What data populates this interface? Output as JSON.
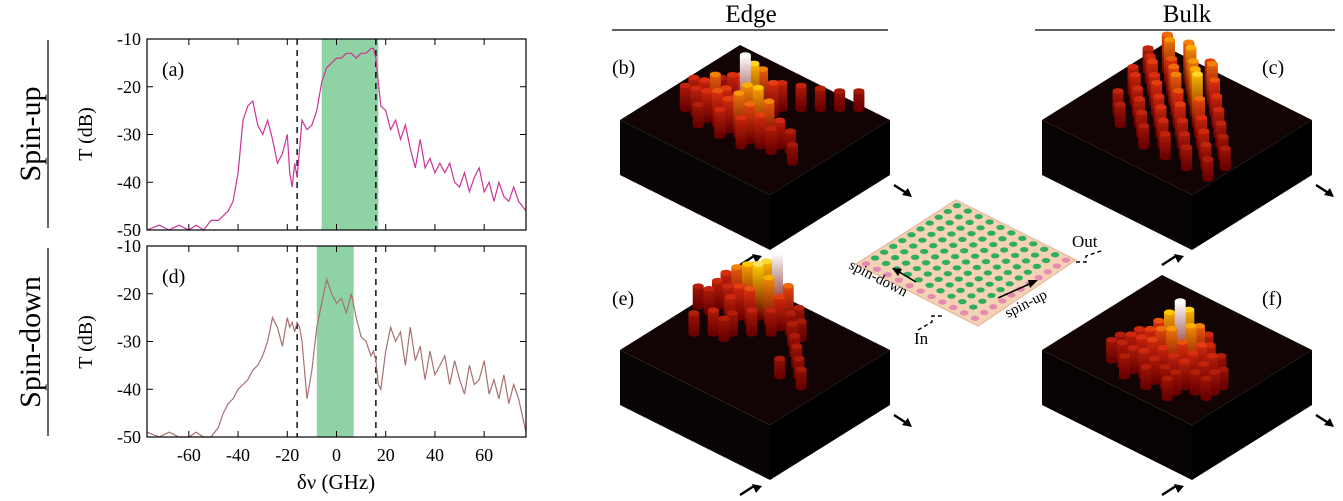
{
  "chart_data": [
    {
      "type": "line",
      "panel": "(a)",
      "row_label": "Spin-up",
      "xlabel": "δν (GHz)",
      "ylabel": "T (dB)",
      "xlim": [
        -77,
        77
      ],
      "ylim": [
        -50,
        -10
      ],
      "yticks": [
        -10,
        -20,
        -30,
        -40,
        -50
      ],
      "xticks": [
        -60,
        -40,
        -20,
        0,
        20,
        40,
        60
      ],
      "color": "#cc3399",
      "band": [
        -6,
        17
      ],
      "band_color": "#8fd3a5",
      "dashed_lines": [
        -16,
        16
      ],
      "x": [
        -77,
        -72,
        -68,
        -64,
        -60,
        -57,
        -54,
        -51,
        -48,
        -46,
        -44,
        -42,
        -40,
        -38,
        -36,
        -34,
        -32,
        -30,
        -28,
        -26,
        -24,
        -22,
        -20,
        -19,
        -18,
        -17,
        -16,
        -15,
        -14,
        -12,
        -10,
        -8,
        -6,
        -4,
        -2,
        0,
        2,
        4,
        6,
        8,
        10,
        12,
        14,
        15,
        16,
        17,
        18,
        20,
        22,
        24,
        26,
        28,
        30,
        32,
        34,
        36,
        38,
        40,
        42,
        44,
        46,
        48,
        50,
        52,
        54,
        56,
        58,
        60,
        62,
        64,
        66,
        68,
        70,
        72,
        74,
        77
      ],
      "y": [
        -50,
        -49,
        -51,
        -49,
        -50,
        -49,
        -50,
        -48,
        -48,
        -47,
        -46,
        -44,
        -38,
        -27,
        -24,
        -23,
        -28,
        -30,
        -27,
        -31,
        -36,
        -34,
        -30,
        -38,
        -41,
        -36,
        -39,
        -33,
        -27,
        -29,
        -28,
        -25,
        -19,
        -16,
        -15,
        -14,
        -14,
        -13,
        -13,
        -14,
        -13,
        -13,
        -12,
        -12,
        -14,
        -19,
        -24,
        -25,
        -29,
        -27,
        -31,
        -28,
        -33,
        -37,
        -31,
        -37,
        -35,
        -38,
        -36,
        -38,
        -36,
        -40,
        -41,
        -38,
        -42,
        -39,
        -37,
        -42,
        -40,
        -44,
        -40,
        -43,
        -44,
        -41,
        -44,
        -46
      ]
    },
    {
      "type": "line",
      "panel": "(d)",
      "row_label": "Spin-down",
      "xlabel": "δν (GHz)",
      "ylabel": "T (dB)",
      "xlim": [
        -77,
        77
      ],
      "ylim": [
        -50,
        -10
      ],
      "yticks": [
        -10,
        -20,
        -30,
        -40,
        -50
      ],
      "xticks": [
        -60,
        -40,
        -20,
        0,
        20,
        40,
        60
      ],
      "color": "#a87070",
      "band": [
        -8,
        7
      ],
      "band_color": "#8fd3a5",
      "dashed_lines": [
        -16,
        16
      ],
      "x": [
        -77,
        -72,
        -68,
        -64,
        -60,
        -57,
        -54,
        -51,
        -48,
        -46,
        -44,
        -42,
        -40,
        -38,
        -36,
        -34,
        -32,
        -30,
        -28,
        -26,
        -24,
        -22,
        -20,
        -19,
        -18,
        -17,
        -16,
        -15,
        -14,
        -12,
        -10,
        -8,
        -6,
        -4,
        -2,
        0,
        2,
        4,
        6,
        8,
        10,
        12,
        14,
        15,
        16,
        17,
        18,
        20,
        22,
        24,
        26,
        28,
        30,
        32,
        34,
        36,
        38,
        40,
        42,
        44,
        46,
        48,
        50,
        52,
        54,
        56,
        58,
        60,
        62,
        64,
        66,
        68,
        70,
        72,
        74,
        77
      ],
      "y": [
        -49,
        -50,
        -49,
        -50,
        -50,
        -49,
        -50,
        -50,
        -48,
        -45,
        -43,
        -42,
        -40,
        -39,
        -38,
        -36,
        -35,
        -33,
        -30,
        -25,
        -27,
        -31,
        -25,
        -27,
        -26,
        -28,
        -26,
        -27,
        -30,
        -42,
        -36,
        -27,
        -22,
        -17,
        -20,
        -22,
        -21,
        -24,
        -20,
        -25,
        -29,
        -30,
        -33,
        -32,
        -34,
        -39,
        -40,
        -32,
        -27,
        -30,
        -28,
        -35,
        -27,
        -34,
        -31,
        -38,
        -32,
        -37,
        -35,
        -33,
        -39,
        -34,
        -38,
        -41,
        -35,
        -39,
        -38,
        -34,
        -41,
        -38,
        -42,
        -37,
        -43,
        -39,
        -42,
        -49
      ]
    }
  ],
  "headers": {
    "edge": "Edge",
    "bulk": "Bulk"
  },
  "panel_labels": {
    "b": "(b)",
    "c": "(c)",
    "e": "(e)",
    "f": "(f)"
  },
  "inset": {
    "out_label": "Out",
    "in_label": "In",
    "spin_down_label": "spin-down",
    "spin_up_label": "spin-up"
  },
  "colors": {
    "box_dark": "#000000",
    "pillar_low": "#6a0000",
    "pillar_mid": "#e03010",
    "pillar_high": "#ffd000",
    "pillar_top": "#ffffff",
    "hole_green": "#2fae5f",
    "hole_pink": "#e58ab0",
    "plate": "#f3d2b5"
  },
  "pillars": {
    "b": [
      [
        4,
        5,
        0.25
      ],
      [
        4,
        6,
        0.35
      ],
      [
        5,
        5,
        0.2
      ],
      [
        5,
        6,
        0.45
      ],
      [
        6,
        5,
        0.55
      ],
      [
        6,
        6,
        0.75
      ],
      [
        6,
        7,
        1.0
      ],
      [
        7,
        4,
        0.3
      ],
      [
        7,
        5,
        0.4
      ],
      [
        3,
        6,
        0.2
      ],
      [
        8,
        3,
        0.25
      ],
      [
        9,
        2,
        0.2
      ],
      [
        10,
        1,
        0.15
      ],
      [
        11,
        0,
        0.15
      ],
      [
        2,
        8,
        0.3
      ],
      [
        3,
        8,
        0.35
      ],
      [
        4,
        8,
        0.55
      ],
      [
        5,
        8,
        0.4
      ],
      [
        6,
        8,
        0.35
      ],
      [
        7,
        8,
        0.65
      ],
      [
        8,
        8,
        0.7
      ],
      [
        9,
        8,
        0.55
      ],
      [
        7,
        9,
        0.6
      ],
      [
        8,
        9,
        0.5
      ],
      [
        6,
        9,
        0.4
      ],
      [
        5,
        9,
        0.45
      ],
      [
        4,
        9,
        0.35
      ],
      [
        10,
        8,
        0.3
      ],
      [
        9,
        9,
        0.4
      ],
      [
        3,
        9,
        0.3
      ],
      [
        2,
        9,
        0.25
      ],
      [
        11,
        8,
        0.2
      ],
      [
        10,
        9,
        0.25
      ],
      [
        6,
        10,
        0.3
      ],
      [
        8,
        10,
        0.35
      ],
      [
        4,
        10,
        0.2
      ],
      [
        12,
        9,
        0.15
      ]
    ],
    "c": [
      [
        2,
        2,
        0.5
      ],
      [
        3,
        3,
        0.6
      ],
      [
        4,
        2,
        0.55
      ],
      [
        5,
        3,
        0.65
      ],
      [
        4,
        4,
        0.45
      ],
      [
        6,
        2,
        0.4
      ],
      [
        6,
        4,
        0.6
      ],
      [
        7,
        3,
        0.55
      ],
      [
        5,
        5,
        0.5
      ],
      [
        3,
        5,
        0.4
      ],
      [
        7,
        5,
        0.65
      ],
      [
        8,
        4,
        0.45
      ],
      [
        8,
        6,
        0.75
      ],
      [
        6,
        6,
        0.55
      ],
      [
        4,
        6,
        0.35
      ],
      [
        9,
        5,
        0.35
      ],
      [
        9,
        7,
        0.5
      ],
      [
        7,
        7,
        0.45
      ],
      [
        5,
        7,
        0.4
      ],
      [
        3,
        7,
        0.35
      ],
      [
        2,
        4,
        0.3
      ],
      [
        10,
        6,
        0.3
      ],
      [
        10,
        8,
        0.35
      ],
      [
        8,
        8,
        0.4
      ],
      [
        6,
        8,
        0.35
      ],
      [
        4,
        8,
        0.3
      ],
      [
        11,
        7,
        0.25
      ],
      [
        11,
        9,
        0.3
      ],
      [
        9,
        9,
        0.3
      ],
      [
        7,
        9,
        0.35
      ],
      [
        5,
        9,
        0.3
      ],
      [
        3,
        9,
        0.25
      ],
      [
        12,
        8,
        0.2
      ],
      [
        12,
        10,
        0.25
      ],
      [
        10,
        10,
        0.25
      ],
      [
        8,
        10,
        0.3
      ],
      [
        6,
        10,
        0.25
      ],
      [
        4,
        10,
        0.2
      ],
      [
        11,
        11,
        0.2
      ],
      [
        9,
        11,
        0.25
      ],
      [
        7,
        11,
        0.2
      ],
      [
        2,
        6,
        0.3
      ],
      [
        1,
        3,
        0.25
      ],
      [
        13,
        9,
        0.18
      ],
      [
        13,
        11,
        0.18
      ]
    ],
    "e": [
      [
        1,
        3,
        0.35
      ],
      [
        2,
        2,
        0.45
      ],
      [
        2,
        3,
        0.55
      ],
      [
        3,
        2,
        0.6
      ],
      [
        3,
        3,
        0.7
      ],
      [
        4,
        2,
        0.75
      ],
      [
        4,
        3,
        0.8
      ],
      [
        5,
        2,
        1.0
      ],
      [
        5,
        3,
        0.65
      ],
      [
        3,
        4,
        0.4
      ],
      [
        4,
        4,
        0.45
      ],
      [
        6,
        2,
        0.5
      ],
      [
        6,
        3,
        0.4
      ],
      [
        1,
        4,
        0.3
      ],
      [
        2,
        4,
        0.3
      ],
      [
        6,
        4,
        0.25
      ],
      [
        5,
        5,
        0.25
      ],
      [
        4,
        6,
        0.2
      ],
      [
        3,
        7,
        0.25
      ],
      [
        2,
        8,
        0.2
      ],
      [
        0,
        5,
        0.2
      ],
      [
        1,
        5,
        0.25
      ],
      [
        3,
        5,
        0.3
      ],
      [
        4,
        7,
        0.2
      ],
      [
        7,
        2,
        0.2
      ],
      [
        7,
        3,
        0.2
      ],
      [
        8,
        4,
        0.2
      ],
      [
        9,
        5,
        0.18
      ],
      [
        10,
        6,
        0.18
      ],
      [
        8,
        3,
        0.15
      ],
      [
        11,
        7,
        0.15
      ],
      [
        10,
        8,
        0.15
      ],
      [
        12,
        8,
        0.15
      ]
    ],
    "f": [
      [
        6,
        8,
        0.45
      ],
      [
        7,
        7,
        0.55
      ],
      [
        7,
        8,
        0.7
      ],
      [
        8,
        7,
        0.75
      ],
      [
        8,
        8,
        1.0
      ],
      [
        8,
        9,
        0.6
      ],
      [
        9,
        8,
        0.65
      ],
      [
        9,
        7,
        0.55
      ],
      [
        6,
        9,
        0.4
      ],
      [
        7,
        9,
        0.5
      ],
      [
        9,
        9,
        0.45
      ],
      [
        10,
        8,
        0.4
      ],
      [
        5,
        9,
        0.3
      ],
      [
        5,
        10,
        0.3
      ],
      [
        6,
        10,
        0.35
      ],
      [
        7,
        10,
        0.4
      ],
      [
        8,
        10,
        0.35
      ],
      [
        9,
        10,
        0.3
      ],
      [
        10,
        9,
        0.35
      ],
      [
        10,
        10,
        0.3
      ],
      [
        11,
        9,
        0.25
      ],
      [
        11,
        8,
        0.3
      ],
      [
        10,
        7,
        0.3
      ],
      [
        9,
        6,
        0.3
      ],
      [
        11,
        10,
        0.2
      ],
      [
        4,
        10,
        0.2
      ],
      [
        4,
        11,
        0.2
      ],
      [
        5,
        11,
        0.25
      ],
      [
        6,
        11,
        0.25
      ],
      [
        7,
        11,
        0.3
      ],
      [
        8,
        11,
        0.25
      ],
      [
        9,
        11,
        0.2
      ],
      [
        10,
        11,
        0.2
      ],
      [
        12,
        9,
        0.2
      ],
      [
        12,
        10,
        0.18
      ],
      [
        6,
        12,
        0.2
      ],
      [
        8,
        12,
        0.2
      ],
      [
        10,
        12,
        0.18
      ],
      [
        12,
        8,
        0.15
      ],
      [
        11,
        7,
        0.2
      ]
    ]
  }
}
